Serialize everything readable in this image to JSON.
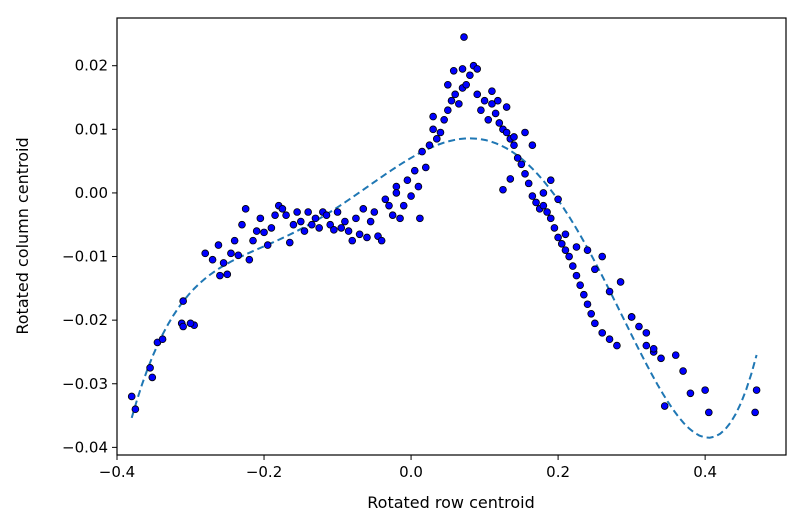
{
  "chart_data": {
    "type": "scatter",
    "title": "",
    "xlabel": "Rotated row centroid",
    "ylabel": "Rotated column centroid",
    "xlim": [
      -0.4,
      0.51
    ],
    "ylim": [
      -0.0412,
      0.0275
    ],
    "x_ticks": [
      -0.4,
      -0.2,
      0.0,
      0.2,
      0.4
    ],
    "x_tick_labels": [
      "−0.4",
      "−0.2",
      "0.0",
      "0.2",
      "0.4"
    ],
    "y_ticks": [
      -0.04,
      -0.03,
      -0.02,
      -0.01,
      0.0,
      0.01,
      0.02
    ],
    "y_tick_labels": [
      "−0.04",
      "−0.03",
      "−0.02",
      "−0.01",
      "0.00",
      "0.01",
      "0.02"
    ],
    "grid": false,
    "legend": "none",
    "series": [
      {
        "kind": "scatter",
        "color": "#0000ff",
        "edgecolor": "#000000",
        "points": [
          [
            -0.38,
            -0.032
          ],
          [
            -0.375,
            -0.034
          ],
          [
            -0.355,
            -0.0275
          ],
          [
            -0.352,
            -0.029
          ],
          [
            -0.345,
            -0.0235
          ],
          [
            -0.338,
            -0.023
          ],
          [
            -0.31,
            -0.017
          ],
          [
            -0.312,
            -0.0205
          ],
          [
            -0.31,
            -0.021
          ],
          [
            -0.295,
            -0.0208
          ],
          [
            -0.28,
            -0.0095
          ],
          [
            -0.27,
            -0.0105
          ],
          [
            -0.262,
            -0.0082
          ],
          [
            -0.26,
            -0.013
          ],
          [
            -0.255,
            -0.011
          ],
          [
            -0.25,
            -0.0128
          ],
          [
            -0.245,
            -0.0095
          ],
          [
            -0.24,
            -0.0075
          ],
          [
            -0.235,
            -0.0098
          ],
          [
            -0.23,
            -0.005
          ],
          [
            -0.225,
            -0.0025
          ],
          [
            -0.22,
            -0.0105
          ],
          [
            -0.215,
            -0.0075
          ],
          [
            -0.21,
            -0.006
          ],
          [
            -0.205,
            -0.004
          ],
          [
            -0.2,
            -0.0062
          ],
          [
            -0.195,
            -0.0082
          ],
          [
            -0.19,
            -0.0055
          ],
          [
            -0.185,
            -0.0035
          ],
          [
            -0.18,
            -0.002
          ],
          [
            -0.175,
            -0.0025
          ],
          [
            -0.17,
            -0.0035
          ],
          [
            -0.165,
            -0.0078
          ],
          [
            -0.16,
            -0.005
          ],
          [
            -0.155,
            -0.003
          ],
          [
            -0.15,
            -0.0045
          ],
          [
            -0.145,
            -0.006
          ],
          [
            -0.14,
            -0.003
          ],
          [
            -0.135,
            -0.005
          ],
          [
            -0.13,
            -0.004
          ],
          [
            -0.125,
            -0.0055
          ],
          [
            -0.12,
            -0.003
          ],
          [
            -0.115,
            -0.0035
          ],
          [
            -0.11,
            -0.005
          ],
          [
            -0.105,
            -0.0058
          ],
          [
            -0.1,
            -0.003
          ],
          [
            -0.095,
            -0.0055
          ],
          [
            -0.09,
            -0.0045
          ],
          [
            -0.085,
            -0.006
          ],
          [
            -0.08,
            -0.0075
          ],
          [
            -0.075,
            -0.004
          ],
          [
            -0.07,
            -0.0065
          ],
          [
            -0.065,
            -0.0025
          ],
          [
            -0.06,
            -0.007
          ],
          [
            -0.055,
            -0.0045
          ],
          [
            -0.05,
            -0.003
          ],
          [
            -0.045,
            -0.0068
          ],
          [
            -0.04,
            -0.0075
          ],
          [
            -0.035,
            -0.001
          ],
          [
            -0.03,
            -0.002
          ],
          [
            -0.025,
            -0.0035
          ],
          [
            -0.02,
            0.001
          ],
          [
            -0.015,
            -0.004
          ],
          [
            -0.01,
            -0.002
          ],
          [
            -0.005,
            0.002
          ],
          [
            0.0,
            -0.0005
          ],
          [
            0.005,
            0.0035
          ],
          [
            0.01,
            0.001
          ],
          [
            0.012,
            -0.004
          ],
          [
            0.015,
            0.0065
          ],
          [
            0.02,
            0.004
          ],
          [
            0.025,
            0.0075
          ],
          [
            0.03,
            0.01
          ],
          [
            0.035,
            0.0085
          ],
          [
            0.04,
            0.0095
          ],
          [
            0.045,
            0.0115
          ],
          [
            0.05,
            0.013
          ],
          [
            0.055,
            0.0145
          ],
          [
            0.06,
            0.0155
          ],
          [
            0.065,
            0.014
          ],
          [
            0.07,
            0.0165
          ],
          [
            0.075,
            0.017
          ],
          [
            0.08,
            0.0185
          ],
          [
            0.085,
            0.02
          ],
          [
            0.09,
            0.0155
          ],
          [
            0.095,
            0.013
          ],
          [
            0.1,
            0.0145
          ],
          [
            0.105,
            0.0115
          ],
          [
            0.11,
            0.014
          ],
          [
            0.115,
            0.0125
          ],
          [
            0.12,
            0.011
          ],
          [
            0.125,
            0.01
          ],
          [
            0.13,
            0.0095
          ],
          [
            0.135,
            0.0085
          ],
          [
            0.14,
            0.0075
          ],
          [
            0.145,
            0.0055
          ],
          [
            0.15,
            0.0045
          ],
          [
            0.155,
            0.003
          ],
          [
            0.16,
            0.0015
          ],
          [
            0.165,
            -0.0005
          ],
          [
            0.17,
            -0.0015
          ],
          [
            0.175,
            -0.0025
          ],
          [
            0.18,
            -0.002
          ],
          [
            0.185,
            -0.003
          ],
          [
            0.19,
            -0.004
          ],
          [
            0.195,
            -0.0055
          ],
          [
            0.2,
            -0.007
          ],
          [
            0.205,
            -0.008
          ],
          [
            0.21,
            -0.009
          ],
          [
            0.215,
            -0.01
          ],
          [
            0.22,
            -0.0115
          ],
          [
            0.225,
            -0.013
          ],
          [
            0.23,
            -0.0145
          ],
          [
            0.235,
            -0.016
          ],
          [
            0.24,
            -0.0175
          ],
          [
            0.245,
            -0.019
          ],
          [
            0.25,
            -0.0205
          ],
          [
            0.26,
            -0.022
          ],
          [
            0.27,
            -0.023
          ],
          [
            0.28,
            -0.024
          ],
          [
            0.3,
            -0.0195
          ],
          [
            0.31,
            -0.021
          ],
          [
            0.32,
            -0.022
          ],
          [
            0.33,
            -0.025
          ],
          [
            0.34,
            -0.026
          ],
          [
            0.36,
            -0.0255
          ],
          [
            0.37,
            -0.028
          ],
          [
            0.38,
            -0.0315
          ],
          [
            0.4,
            -0.031
          ],
          [
            0.405,
            -0.0345
          ],
          [
            0.468,
            -0.0345
          ],
          [
            0.47,
            -0.031
          ],
          [
            -0.3,
            -0.0205
          ],
          [
            -0.02,
            0.0
          ],
          [
            0.03,
            0.012
          ],
          [
            0.05,
            0.017
          ],
          [
            0.07,
            0.0195
          ],
          [
            0.072,
            0.0245
          ],
          [
            0.058,
            0.0192
          ],
          [
            0.09,
            0.0195
          ],
          [
            0.11,
            0.016
          ],
          [
            0.118,
            0.0145
          ],
          [
            0.13,
            0.0135
          ],
          [
            0.14,
            0.0088
          ],
          [
            0.165,
            0.0075
          ],
          [
            0.155,
            0.0095
          ],
          [
            0.135,
            0.0022
          ],
          [
            0.125,
            0.0005
          ],
          [
            0.18,
            0.0
          ],
          [
            0.19,
            0.002
          ],
          [
            0.2,
            -0.001
          ],
          [
            0.21,
            -0.0065
          ],
          [
            0.225,
            -0.0085
          ],
          [
            0.24,
            -0.009
          ],
          [
            0.25,
            -0.012
          ],
          [
            0.26,
            -0.01
          ],
          [
            0.27,
            -0.0155
          ],
          [
            0.285,
            -0.014
          ],
          [
            0.3,
            -0.0195
          ],
          [
            0.32,
            -0.024
          ],
          [
            0.33,
            -0.0245
          ],
          [
            0.345,
            -0.0335
          ]
        ]
      },
      {
        "kind": "line",
        "style": "dashed",
        "color": "#1f77b4",
        "fit_polynomial": true
      }
    ]
  }
}
